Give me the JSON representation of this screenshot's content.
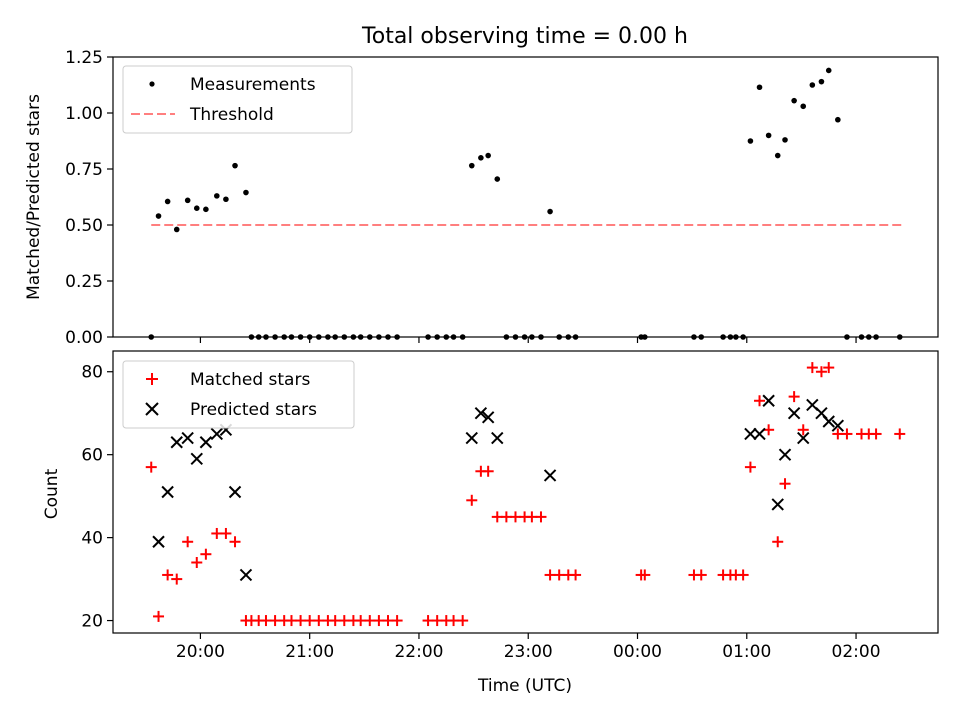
{
  "figure_title": "Total observing time = 0.00 h",
  "chart_data": [
    {
      "type": "scatter",
      "ylabel": "Matched/Predicted stars",
      "xlabel": "",
      "ylim": [
        0,
        1.25
      ],
      "xlim_hours": [
        19.2,
        26.75
      ],
      "yticks": [
        0,
        0.25,
        0.5,
        0.75,
        1.0,
        1.25
      ],
      "ytick_labels": [
        "0.00",
        "0.25",
        "0.50",
        "0.75",
        "1.00",
        "1.25"
      ],
      "legend_position": "top-left",
      "legend": {
        "measurements": "Measurements",
        "threshold": "Threshold"
      },
      "threshold": {
        "value": 0.5,
        "x_start": "19:33",
        "x_end": "02:25",
        "color": "#ff7f7f"
      },
      "measurements": [
        [
          "19:33",
          0.0
        ],
        [
          "19:37",
          0.54
        ],
        [
          "19:42",
          0.605
        ],
        [
          "19:47",
          0.48
        ],
        [
          "19:53",
          0.61
        ],
        [
          "19:58",
          0.575
        ],
        [
          "20:03",
          0.57
        ],
        [
          "20:09",
          0.63
        ],
        [
          "20:14",
          0.615
        ],
        [
          "20:19",
          0.765
        ],
        [
          "20:25",
          0.645
        ],
        [
          "20:28",
          0.0
        ],
        [
          "20:32",
          0.0
        ],
        [
          "20:36",
          0.0
        ],
        [
          "20:41",
          0.0
        ],
        [
          "20:46",
          0.0
        ],
        [
          "20:50",
          0.0
        ],
        [
          "20:55",
          0.0
        ],
        [
          "21:00",
          0.0
        ],
        [
          "21:05",
          0.0
        ],
        [
          "21:10",
          0.0
        ],
        [
          "21:14",
          0.0
        ],
        [
          "21:19",
          0.0
        ],
        [
          "21:24",
          0.0
        ],
        [
          "21:28",
          0.0
        ],
        [
          "21:33",
          0.0
        ],
        [
          "21:38",
          0.0
        ],
        [
          "21:43",
          0.0
        ],
        [
          "21:48",
          0.0
        ],
        [
          "22:05",
          0.0
        ],
        [
          "22:10",
          0.0
        ],
        [
          "22:15",
          0.0
        ],
        [
          "22:19",
          0.0
        ],
        [
          "22:24",
          0.0
        ],
        [
          "22:29",
          0.765
        ],
        [
          "22:34",
          0.8
        ],
        [
          "22:38",
          0.81
        ],
        [
          "22:43",
          0.705
        ],
        [
          "22:48",
          0.0
        ],
        [
          "22:53",
          0.0
        ],
        [
          "22:58",
          0.0
        ],
        [
          "23:02",
          0.0
        ],
        [
          "23:07",
          0.0
        ],
        [
          "23:12",
          0.56
        ],
        [
          "23:17",
          0.0
        ],
        [
          "23:22",
          0.0
        ],
        [
          "23:26",
          0.0
        ],
        [
          "00:02",
          0.0
        ],
        [
          "00:04",
          0.0
        ],
        [
          "00:31",
          0.0
        ],
        [
          "00:35",
          0.0
        ],
        [
          "00:47",
          0.0
        ],
        [
          "00:51",
          0.0
        ],
        [
          "00:54",
          0.0
        ],
        [
          "00:58",
          0.0
        ],
        [
          "01:02",
          0.875
        ],
        [
          "01:07",
          1.115
        ],
        [
          "01:12",
          0.9
        ],
        [
          "01:17",
          0.81
        ],
        [
          "01:21",
          0.88
        ],
        [
          "01:26",
          1.055
        ],
        [
          "01:31",
          1.03
        ],
        [
          "01:36",
          1.125
        ],
        [
          "01:41",
          1.14
        ],
        [
          "01:45",
          1.19
        ],
        [
          "01:50",
          0.97
        ],
        [
          "01:55",
          0.0
        ],
        [
          "02:03",
          0.0
        ],
        [
          "02:07",
          0.0
        ],
        [
          "02:11",
          0.0
        ],
        [
          "02:24",
          0.0
        ]
      ]
    },
    {
      "type": "scatter",
      "ylabel": "Count",
      "xlabel": "Time (UTC)",
      "ylim": [
        17,
        85
      ],
      "yticks": [
        20,
        40,
        60,
        80
      ],
      "ytick_labels": [
        "20",
        "40",
        "60",
        "80"
      ],
      "xticks_hours": [
        20,
        21,
        22,
        23,
        24,
        25,
        26
      ],
      "xtick_labels": [
        "20:00",
        "21:00",
        "22:00",
        "23:00",
        "00:00",
        "01:00",
        "02:00"
      ],
      "legend_position": "top-left",
      "legend": {
        "matched": "Matched stars",
        "predicted": "Predicted stars"
      },
      "series": [
        {
          "name": "Matched stars",
          "marker": "+",
          "color": "#ff0000",
          "points": [
            [
              "19:33",
              57
            ],
            [
              "19:37",
              21
            ],
            [
              "19:42",
              31
            ],
            [
              "19:47",
              30
            ],
            [
              "19:53",
              39
            ],
            [
              "19:58",
              34
            ],
            [
              "20:03",
              36
            ],
            [
              "20:09",
              41
            ],
            [
              "20:14",
              41
            ],
            [
              "20:19",
              39
            ],
            [
              "20:25",
              20
            ],
            [
              "20:28",
              20
            ],
            [
              "20:32",
              20
            ],
            [
              "20:36",
              20
            ],
            [
              "20:41",
              20
            ],
            [
              "20:46",
              20
            ],
            [
              "20:50",
              20
            ],
            [
              "20:55",
              20
            ],
            [
              "21:00",
              20
            ],
            [
              "21:05",
              20
            ],
            [
              "21:10",
              20
            ],
            [
              "21:14",
              20
            ],
            [
              "21:19",
              20
            ],
            [
              "21:24",
              20
            ],
            [
              "21:28",
              20
            ],
            [
              "21:33",
              20
            ],
            [
              "21:38",
              20
            ],
            [
              "21:43",
              20
            ],
            [
              "21:48",
              20
            ],
            [
              "22:05",
              20
            ],
            [
              "22:10",
              20
            ],
            [
              "22:15",
              20
            ],
            [
              "22:19",
              20
            ],
            [
              "22:24",
              20
            ],
            [
              "22:29",
              49
            ],
            [
              "22:34",
              56
            ],
            [
              "22:38",
              56
            ],
            [
              "22:43",
              45
            ],
            [
              "22:48",
              45
            ],
            [
              "22:53",
              45
            ],
            [
              "22:58",
              45
            ],
            [
              "23:02",
              45
            ],
            [
              "23:07",
              45
            ],
            [
              "23:12",
              31
            ],
            [
              "23:17",
              31
            ],
            [
              "23:22",
              31
            ],
            [
              "23:26",
              31
            ],
            [
              "00:02",
              31
            ],
            [
              "00:04",
              31
            ],
            [
              "00:31",
              31
            ],
            [
              "00:35",
              31
            ],
            [
              "00:47",
              31
            ],
            [
              "00:51",
              31
            ],
            [
              "00:54",
              31
            ],
            [
              "00:58",
              31
            ],
            [
              "01:02",
              57
            ],
            [
              "01:07",
              73
            ],
            [
              "01:12",
              66
            ],
            [
              "01:17",
              39
            ],
            [
              "01:21",
              53
            ],
            [
              "01:26",
              74
            ],
            [
              "01:31",
              66
            ],
            [
              "01:36",
              81
            ],
            [
              "01:41",
              80
            ],
            [
              "01:45",
              81
            ],
            [
              "01:50",
              65
            ],
            [
              "01:55",
              65
            ],
            [
              "02:03",
              65
            ],
            [
              "02:07",
              65
            ],
            [
              "02:11",
              65
            ],
            [
              "02:24",
              65
            ]
          ]
        },
        {
          "name": "Predicted stars",
          "marker": "x",
          "color": "#000000",
          "points": [
            [
              "19:37",
              39
            ],
            [
              "19:42",
              51
            ],
            [
              "19:47",
              63
            ],
            [
              "19:53",
              64
            ],
            [
              "19:58",
              59
            ],
            [
              "20:03",
              63
            ],
            [
              "20:09",
              65
            ],
            [
              "20:14",
              66
            ],
            [
              "20:19",
              51
            ],
            [
              "20:25",
              31
            ],
            [
              "22:29",
              64
            ],
            [
              "22:34",
              70
            ],
            [
              "22:38",
              69
            ],
            [
              "22:43",
              64
            ],
            [
              "23:12",
              55
            ],
            [
              "01:02",
              65
            ],
            [
              "01:07",
              65
            ],
            [
              "01:12",
              73
            ],
            [
              "01:17",
              48
            ],
            [
              "01:21",
              60
            ],
            [
              "01:26",
              70
            ],
            [
              "01:31",
              64
            ],
            [
              "01:36",
              72
            ],
            [
              "01:41",
              70
            ],
            [
              "01:45",
              68
            ],
            [
              "01:50",
              67
            ]
          ]
        }
      ]
    }
  ]
}
